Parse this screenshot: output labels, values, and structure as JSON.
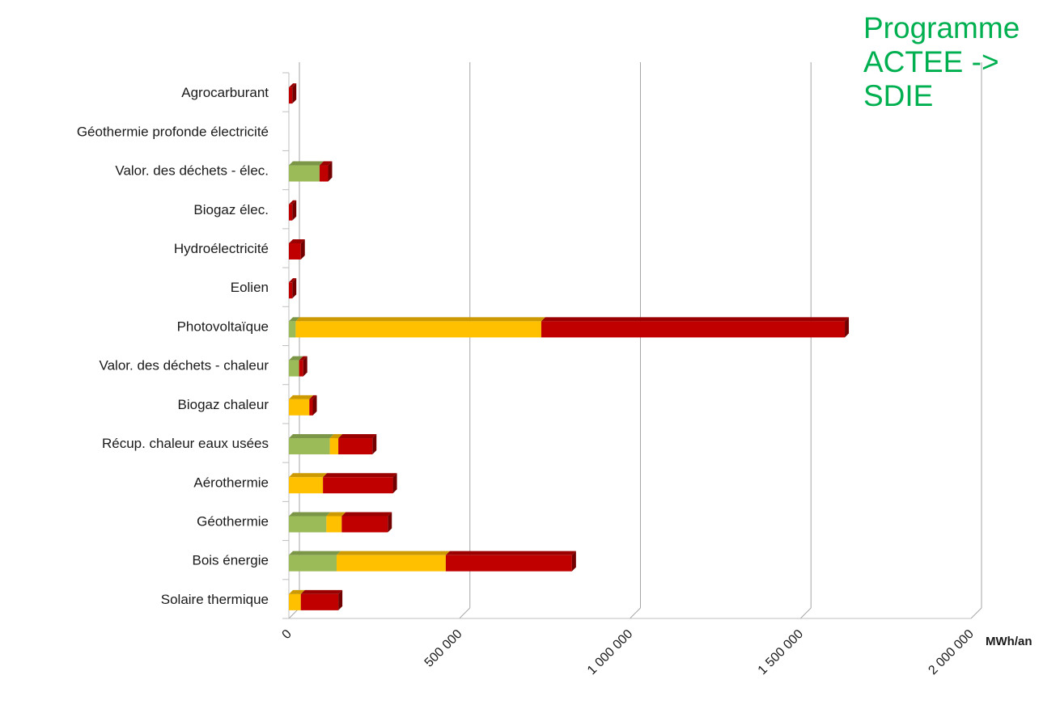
{
  "chart_data": {
    "type": "bar",
    "orientation": "horizontal",
    "stacked": true,
    "categories": [
      "Agrocarburant",
      "Géothermie profonde électricité",
      "Valor. des déchets - élec.",
      "Biogaz élec.",
      "Hydroélectricité",
      "Eolien",
      "Photovoltaïque",
      "Valor. des déchets - chaleur",
      "Biogaz chaleur",
      "Récup. chaleur eaux usées",
      "Aérothermie",
      "Géothermie",
      "Bois énergie",
      "Solaire thermique"
    ],
    "series": [
      {
        "color": "#9bbb59",
        "values": [
          0,
          0,
          90000,
          0,
          0,
          0,
          20000,
          30000,
          0,
          120000,
          0,
          110000,
          140000,
          0
        ]
      },
      {
        "color": "#ffc000",
        "values": [
          0,
          0,
          0,
          0,
          0,
          0,
          720000,
          0,
          60000,
          25000,
          100000,
          45000,
          320000,
          35000
        ]
      },
      {
        "color": "#c00000",
        "values": [
          10000,
          0,
          25000,
          10000,
          35000,
          10000,
          890000,
          12000,
          10000,
          100000,
          205000,
          135000,
          370000,
          110000
        ]
      }
    ],
    "x_axis": {
      "ticks": [
        "0",
        "500 000",
        "1 000 000",
        "1 500 000",
        "2 000 000"
      ],
      "tick_values": [
        0,
        500000,
        1000000,
        1500000,
        2000000
      ],
      "unit": "MWh/an",
      "xlim": [
        0,
        2000000
      ]
    },
    "grid": true,
    "legend": "none"
  },
  "annotation": {
    "lines": [
      "Programme",
      "ACTEE ->",
      "SDIE"
    ]
  }
}
